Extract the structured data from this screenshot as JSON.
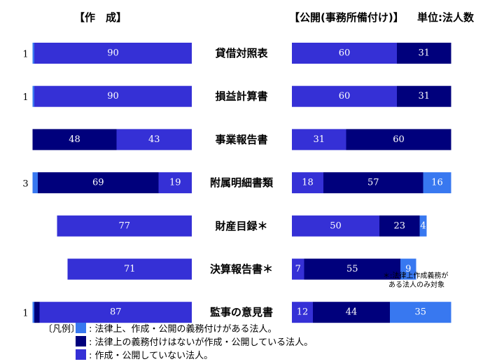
{
  "chart_data": {
    "type": "bar",
    "orientation": "horizontal-stacked",
    "unit_label": "単位:法人数",
    "left_panel": {
      "title": "【作　成】"
    },
    "right_panel": {
      "title": "【公開(事務所備付け)】"
    },
    "categories": [
      "貸借対照表",
      "損益計算書",
      "事業報告書",
      "附属明細書類",
      "財産目録＊",
      "決算報告書＊",
      "監事の意見書"
    ],
    "series_colors": {
      "obligatory": "#3878f0",
      "not_obligatory": "#00007c",
      "not_done": "#3530d6"
    },
    "left_values": [
      {
        "obligatory": 1,
        "not_obligatory": null,
        "not_done": 90
      },
      {
        "obligatory": 1,
        "not_obligatory": null,
        "not_done": 90
      },
      {
        "obligatory": null,
        "not_obligatory": 48,
        "not_done": 43
      },
      {
        "obligatory": 3,
        "not_obligatory": 69,
        "not_done": 19
      },
      {
        "obligatory": null,
        "not_obligatory": null,
        "not_done": 77
      },
      {
        "obligatory": null,
        "not_obligatory": null,
        "not_done": 71
      },
      {
        "obligatory": 1,
        "not_obligatory": 3,
        "not_done": 87
      }
    ],
    "right_values": [
      {
        "obligatory": null,
        "not_obligatory": 31,
        "not_done": 60
      },
      {
        "obligatory": null,
        "not_obligatory": 31,
        "not_done": 60
      },
      {
        "obligatory": null,
        "not_obligatory": 60,
        "not_done": 31
      },
      {
        "obligatory": 16,
        "not_obligatory": 57,
        "not_done": 18
      },
      {
        "obligatory": 4,
        "not_obligatory": 23,
        "not_done": 50
      },
      {
        "obligatory": 9,
        "not_obligatory": 55,
        "not_done": 7
      },
      {
        "obligatory": 35,
        "not_obligatory": 44,
        "not_done": 12
      }
    ],
    "note": [
      "＊:法律上作成義務が",
      "ある法人のみ対象"
    ],
    "legend_prefix": "〔凡例〕",
    "legend": [
      {
        "key": "obligatory",
        "label": ": 法律上、作成・公開の義務付けがある法人。"
      },
      {
        "key": "not_obligatory",
        "label": ": 法律上の義務付けはないが作成・公開している法人。"
      },
      {
        "key": "not_done",
        "label": ": 作成・公開していない法人。"
      }
    ]
  }
}
